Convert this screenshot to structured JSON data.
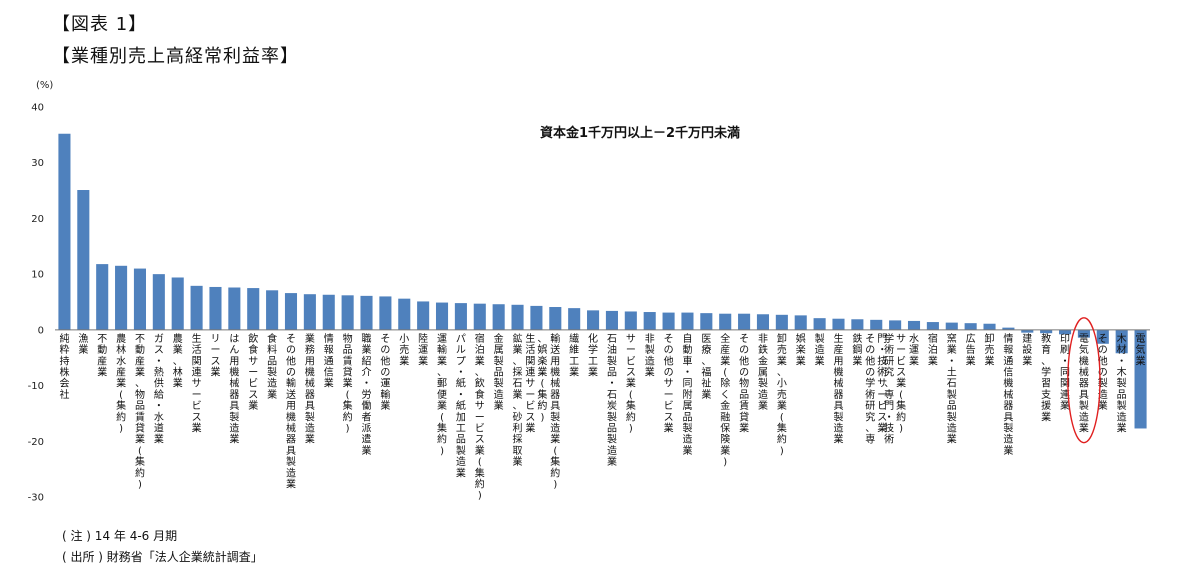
{
  "figure_label": "【図表 1】",
  "figure_title": "【業種別売上高経常利益率】",
  "note": "( 注 ) 14 年 4-6 月期",
  "source": "( 出所 ) 財務省「法人企業統計調査」",
  "chart_data": {
    "type": "bar",
    "title": "資本金1千万円以上－2千万円未満",
    "ylabel": "(%)",
    "ylim": [
      -30,
      40
    ],
    "yticks": [
      -30,
      -20,
      -10,
      0,
      10,
      20,
      30,
      40
    ],
    "grid": false,
    "bar_color": "#4f81bd",
    "highlight": {
      "category": "電気機械器具製造業",
      "color": "#e02020"
    },
    "categories": [
      "純粋持株会社",
      "漁業",
      "不動産業",
      "農林水産業(集約)",
      "不動産業、物品賃貸業(集約)",
      "ガス・熱供給・水道業",
      "農業、林業",
      "生活関連サービス業",
      "リース業",
      "はん用機械器具製造業",
      "飲食サービス業",
      "食料品製造業",
      "その他の輸送用機械器具製造業",
      "業務用機械器具製造業",
      "情報通信業",
      "物品賃貸業(集約)",
      "職業紹介・労働者派遣業",
      "その他の運輸業",
      "小売業",
      "陸運業",
      "運輸業、郵便業(集約)",
      "パルプ・紙・紙加工品製造業",
      "宿泊業、飲食サービス業(集約)",
      "金属製品製造業",
      "鉱業、採石業、砂利採取業",
      "生活関連サービス業、娯楽業(集約)",
      "輸送用機械器具製造業(集約)",
      "繊維工業",
      "化学工業",
      "石油製品・石炭製品製造業",
      "サービス業(集約)",
      "非製造業",
      "その他のサービス業",
      "自動車・同附属品製造業",
      "医療、福祉業",
      "全産業(除く金融保険業)",
      "その他の物品賃貸業",
      "非鉄金属製造業",
      "卸売業、小売業(集約)",
      "娯楽業",
      "製造業",
      "生産用機械器具製造業",
      "鉄鋼業",
      "その他の学術研究、専門・技術サービス業",
      "学術研究、専門・技術サービス業(集約)",
      "水運業",
      "宿泊業",
      "窯業・土石製品製造業",
      "広告業",
      "卸売業",
      "情報通信機械器具製造業",
      "建設業",
      "教育、学習支援業",
      "印刷・同関連業",
      "電気機械器具製造業",
      "その他の製造業",
      "木材・木製品製造業",
      "電気業"
    ],
    "values": [
      35.2,
      25.1,
      11.8,
      11.5,
      11.0,
      10.0,
      9.4,
      7.9,
      7.7,
      7.6,
      7.5,
      7.1,
      6.6,
      6.4,
      6.3,
      6.2,
      6.1,
      6.0,
      5.6,
      5.1,
      4.9,
      4.8,
      4.7,
      4.6,
      4.5,
      4.3,
      4.1,
      3.9,
      3.5,
      3.4,
      3.3,
      3.2,
      3.1,
      3.1,
      3.0,
      2.9,
      2.9,
      2.8,
      2.7,
      2.6,
      2.1,
      2.0,
      1.9,
      1.8,
      1.7,
      1.6,
      1.4,
      1.3,
      1.2,
      1.1,
      0.4,
      -0.5,
      -0.6,
      -0.8,
      -1.4,
      -2.5,
      -4.2,
      -17.7
    ]
  }
}
